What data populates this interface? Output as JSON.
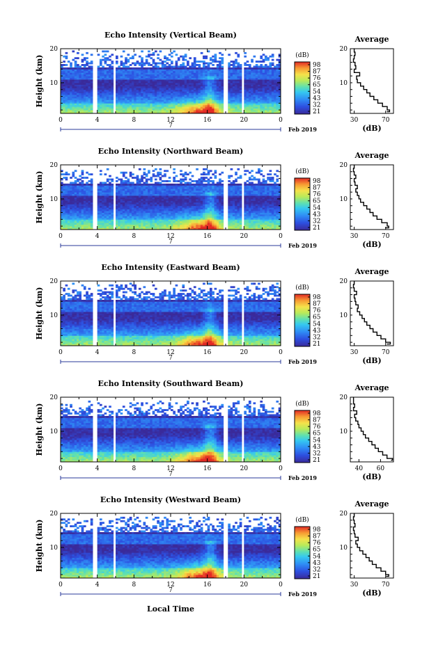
{
  "figure": {
    "xlabel": "Local Time",
    "date_label": "Feb 2019",
    "date_day_label": "7"
  },
  "chart_data": [
    {
      "type": "heatmap",
      "title": "Echo Intensity (Vertical Beam)",
      "xlabel": "",
      "ylabel": "Height (km)",
      "x_ticks": [
        "0",
        "4",
        "8",
        "12",
        "16",
        "20",
        "0"
      ],
      "y_ticks": [
        "20",
        "10"
      ],
      "xlim_hours": [
        0,
        24
      ],
      "ylim_km": [
        1,
        20
      ],
      "colorbar": {
        "unit": "(dB)",
        "ticks": [
          "98",
          "87",
          "76",
          "65",
          "54",
          "43",
          "32",
          "21"
        ],
        "range": [
          21,
          98
        ]
      },
      "missing_time_gaps_hours": [
        [
          3.6,
          4.0
        ],
        [
          5.7,
          6.0
        ],
        [
          17.7,
          18.2
        ],
        [
          19.8,
          20.1
        ]
      ],
      "profile": {
        "title": "Average",
        "xlabel": "(dB)",
        "x_ticks": [
          "30",
          "70"
        ],
        "xlim": [
          25,
          80
        ],
        "y_ticks": [
          "20",
          "10"
        ],
        "heights_km": [
          1.5,
          2,
          3,
          4,
          5,
          6,
          7,
          8,
          9,
          10,
          11,
          12,
          13,
          14,
          15,
          16,
          17,
          18,
          19,
          20
        ],
        "values_db": [
          72,
          75,
          72,
          66,
          60,
          55,
          50,
          46,
          42,
          38,
          34,
          33,
          37,
          30,
          32,
          31,
          29,
          30,
          31,
          30
        ]
      }
    },
    {
      "type": "heatmap",
      "title": "Echo Intensity (Northward Beam)",
      "xlabel": "",
      "ylabel": "Height (km)",
      "x_ticks": [
        "0",
        "4",
        "8",
        "12",
        "16",
        "20",
        "0"
      ],
      "y_ticks": [
        "20",
        "10"
      ],
      "xlim_hours": [
        0,
        24
      ],
      "ylim_km": [
        1,
        20
      ],
      "colorbar": {
        "unit": "(dB)",
        "ticks": [
          "98",
          "87",
          "76",
          "65",
          "54",
          "43",
          "32",
          "21"
        ],
        "range": [
          21,
          98
        ]
      },
      "missing_time_gaps_hours": [
        [
          3.6,
          4.0
        ],
        [
          5.7,
          6.0
        ],
        [
          17.7,
          18.2
        ],
        [
          19.8,
          20.1
        ]
      ],
      "profile": {
        "title": "Average",
        "xlabel": "(dB)",
        "x_ticks": [
          "30",
          "70"
        ],
        "xlim": [
          25,
          80
        ],
        "y_ticks": [
          "20",
          "10"
        ],
        "heights_km": [
          1.5,
          2,
          3,
          4,
          5,
          6,
          7,
          8,
          9,
          10,
          11,
          12,
          13,
          14,
          15,
          16,
          17,
          18,
          19,
          20
        ],
        "values_db": [
          70,
          74,
          72,
          65,
          59,
          54,
          50,
          46,
          42,
          38,
          36,
          34,
          32,
          34,
          31,
          30,
          32,
          30,
          29,
          30
        ]
      }
    },
    {
      "type": "heatmap",
      "title": "Echo Intensity (Eastward Beam)",
      "xlabel": "",
      "ylabel": "Height (km)",
      "x_ticks": [
        "0",
        "4",
        "8",
        "12",
        "16",
        "20",
        "0"
      ],
      "y_ticks": [
        "20",
        "10"
      ],
      "xlim_hours": [
        0,
        24
      ],
      "ylim_km": [
        1,
        20
      ],
      "colorbar": {
        "unit": "(dB)",
        "ticks": [
          "98",
          "87",
          "76",
          "65",
          "54",
          "43",
          "32",
          "21"
        ],
        "range": [
          21,
          98
        ]
      },
      "missing_time_gaps_hours": [
        [
          3.6,
          4.0
        ],
        [
          5.7,
          6.0
        ],
        [
          17.7,
          18.2
        ],
        [
          19.8,
          20.1
        ]
      ],
      "profile": {
        "title": "Average",
        "xlabel": "(dB)",
        "x_ticks": [
          "30",
          "70"
        ],
        "xlim": [
          25,
          80
        ],
        "y_ticks": [
          "20",
          "10"
        ],
        "heights_km": [
          1.5,
          2,
          3,
          4,
          5,
          6,
          7,
          8,
          9,
          10,
          11,
          12,
          13,
          14,
          15,
          16,
          17,
          18,
          19,
          20
        ],
        "values_db": [
          72,
          76,
          70,
          64,
          59,
          54,
          50,
          46,
          43,
          40,
          37,
          34,
          35,
          32,
          31,
          30,
          33,
          30,
          29,
          30
        ]
      }
    },
    {
      "type": "heatmap",
      "title": "Echo Intensity (Southward Beam)",
      "xlabel": "",
      "ylabel": "Height (km)",
      "x_ticks": [
        "0",
        "4",
        "8",
        "12",
        "16",
        "20",
        "0"
      ],
      "y_ticks": [
        "20",
        "10"
      ],
      "xlim_hours": [
        0,
        24
      ],
      "ylim_km": [
        1,
        20
      ],
      "colorbar": {
        "unit": "(dB)",
        "ticks": [
          "98",
          "87",
          "76",
          "65",
          "54",
          "43",
          "32",
          "21"
        ],
        "range": [
          21,
          98
        ]
      },
      "missing_time_gaps_hours": [
        [
          3.6,
          4.0
        ],
        [
          5.7,
          6.0
        ],
        [
          17.7,
          18.2
        ],
        [
          19.8,
          20.1
        ]
      ],
      "profile": {
        "title": "Average",
        "xlabel": "(dB)",
        "x_ticks": [
          "40",
          "60"
        ],
        "xlim": [
          32,
          72
        ],
        "y_ticks": [
          "20",
          "10"
        ],
        "heights_km": [
          1.5,
          2,
          3,
          4,
          5,
          6,
          7,
          8,
          9,
          10,
          11,
          12,
          13,
          14,
          15,
          16,
          17,
          18,
          19,
          20
        ],
        "values_db": [
          70,
          71,
          66,
          62,
          58,
          55,
          52,
          49,
          46,
          44,
          42,
          40,
          39,
          37,
          36,
          38,
          35,
          36,
          35,
          35
        ]
      }
    },
    {
      "type": "heatmap",
      "title": "Echo Intensity (Westward Beam)",
      "xlabel": "Local Time",
      "ylabel": "Height (km)",
      "x_ticks": [
        "0",
        "4",
        "8",
        "12",
        "16",
        "20",
        "0"
      ],
      "y_ticks": [
        "20",
        "10"
      ],
      "xlim_hours": [
        0,
        24
      ],
      "ylim_km": [
        1,
        20
      ],
      "colorbar": {
        "unit": "(dB)",
        "ticks": [
          "98",
          "87",
          "76",
          "65",
          "54",
          "43",
          "32",
          "21"
        ],
        "range": [
          21,
          98
        ]
      },
      "missing_time_gaps_hours": [
        [
          3.6,
          4.0
        ],
        [
          5.7,
          6.0
        ],
        [
          17.7,
          18.2
        ],
        [
          19.8,
          20.1
        ]
      ],
      "profile": {
        "title": "Average",
        "xlabel": "(dB)",
        "x_ticks": [
          "30",
          "70"
        ],
        "xlim": [
          25,
          80
        ],
        "y_ticks": [
          "20",
          "10"
        ],
        "heights_km": [
          1.5,
          2,
          3,
          4,
          5,
          6,
          7,
          8,
          9,
          10,
          11,
          12,
          13,
          14,
          15,
          16,
          17,
          18,
          19,
          20
        ],
        "values_db": [
          71,
          74,
          70,
          64,
          58,
          53,
          49,
          45,
          41,
          37,
          34,
          32,
          35,
          31,
          30,
          29,
          31,
          30,
          29,
          30
        ]
      }
    }
  ]
}
